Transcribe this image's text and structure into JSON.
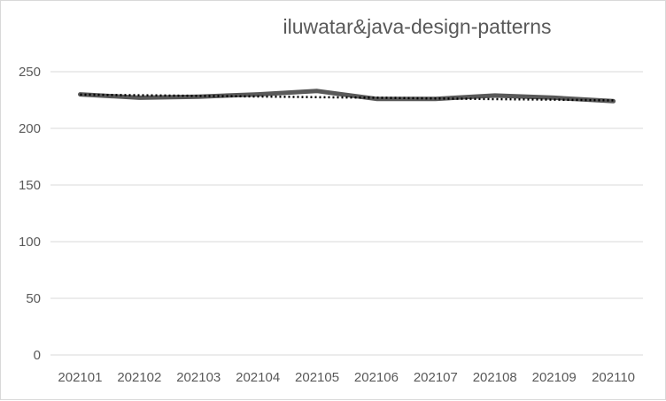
{
  "chart_data": {
    "type": "line",
    "title": "iluwatar&java-design-patterns",
    "xlabel": "",
    "ylabel": "",
    "categories": [
      "202101",
      "202102",
      "202103",
      "202104",
      "202105",
      "202106",
      "202107",
      "202108",
      "202109",
      "202110"
    ],
    "series": [
      {
        "values": [
          230,
          227,
          228,
          230,
          233,
          226,
          226,
          229,
          227,
          224
        ],
        "color": "#595959",
        "style": "solid"
      }
    ],
    "trendline": {
      "type": "linear",
      "values": [
        229.8,
        229.2,
        228.7,
        228.1,
        227.5,
        227.0,
        226.4,
        225.8,
        225.3,
        224.7
      ],
      "color": "#000000",
      "style": "dotted"
    },
    "ylim": [
      0,
      250
    ],
    "yticks": [
      0,
      50,
      100,
      150,
      200,
      250
    ],
    "grid": true,
    "legend": "none"
  }
}
